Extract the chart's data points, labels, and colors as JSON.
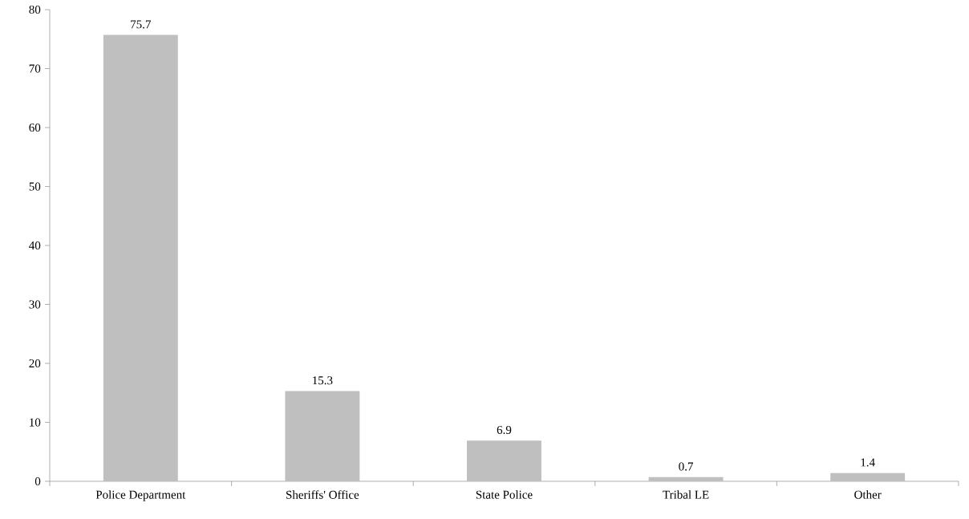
{
  "chart_data": {
    "type": "bar",
    "categories": [
      "Police Department",
      "Sheriffs' Office",
      "State Police",
      "Tribal LE",
      "Other"
    ],
    "values": [
      75.7,
      15.3,
      6.9,
      0.7,
      1.4
    ],
    "color": "#bfbfbf",
    "ylim": [
      0,
      80
    ],
    "yticks": [
      0,
      10,
      20,
      30,
      40,
      50,
      60,
      70,
      80
    ],
    "data_labels": true
  }
}
